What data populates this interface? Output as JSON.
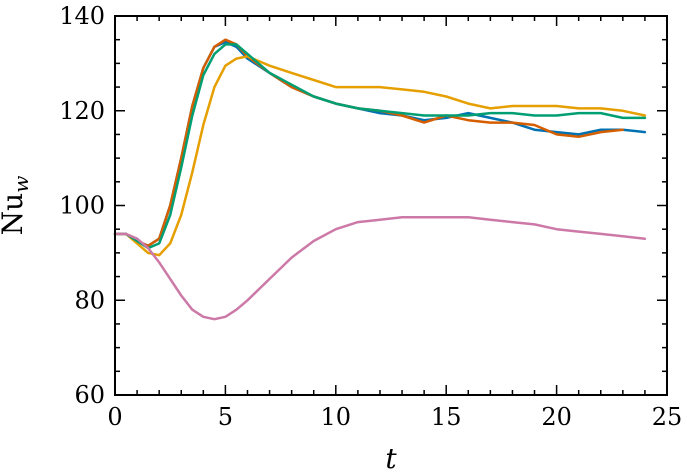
{
  "chart_data": {
    "type": "line",
    "xlabel": "t",
    "ylabel": {
      "main": "Nu",
      "sub": "w"
    },
    "xlim": [
      0,
      25
    ],
    "ylim": [
      60,
      140
    ],
    "xticks": [
      0,
      5,
      10,
      15,
      20,
      25
    ],
    "yticks": [
      60,
      80,
      100,
      120,
      140
    ],
    "xtick_labels": [
      "0",
      "5",
      "10",
      "15",
      "20",
      "25"
    ],
    "ytick_labels": [
      "60",
      "80",
      "100",
      "120",
      "140"
    ],
    "grid": false,
    "series": [
      {
        "color": "#0072b2",
        "x": [
          0,
          0.5,
          1,
          1.5,
          2,
          2.5,
          3,
          3.5,
          4,
          4.5,
          5,
          5.5,
          6,
          7,
          8,
          9,
          10,
          11,
          12,
          13,
          14,
          15,
          16,
          17,
          18,
          19,
          20,
          21,
          22,
          23,
          24
        ],
        "y": [
          94,
          94,
          92.5,
          91.5,
          93,
          100,
          110,
          121,
          129,
          133.5,
          134.5,
          133.5,
          131,
          128,
          125,
          123,
          121.5,
          120.5,
          119.5,
          119,
          118,
          118.5,
          119.5,
          118.5,
          117.5,
          116,
          115.5,
          115,
          116,
          116,
          115.5
        ]
      },
      {
        "color": "#d55e00",
        "x": [
          0,
          0.5,
          1,
          1.5,
          2,
          2.5,
          3,
          3.5,
          4,
          4.5,
          5,
          5.5,
          6,
          7,
          8,
          9,
          10,
          11,
          12,
          13,
          14,
          15,
          16,
          17,
          18,
          19,
          20,
          21,
          22,
          23,
          24
        ],
        "y": [
          94,
          94,
          92.5,
          91.5,
          93,
          100,
          110,
          121,
          129,
          133.5,
          135,
          134,
          131.5,
          128,
          125,
          123,
          121.5,
          120.5,
          120,
          119,
          117.5,
          119,
          118,
          117.5,
          117.5,
          117,
          115,
          114.5,
          115.5,
          116,
          null
        ]
      },
      {
        "color": "#e69f00",
        "x": [
          0,
          0.5,
          1,
          1.5,
          2,
          2.5,
          3,
          3.5,
          4,
          4.5,
          5,
          5.5,
          6,
          7,
          8,
          9,
          10,
          11,
          12,
          13,
          14,
          15,
          16,
          17,
          18,
          19,
          20,
          21,
          22,
          23,
          24
        ],
        "y": [
          94,
          94,
          92,
          90,
          89.5,
          92,
          98,
          107,
          117,
          125,
          129.5,
          131,
          131.5,
          129.5,
          128,
          126.5,
          125,
          125,
          125,
          124.5,
          124,
          123,
          121.5,
          120.5,
          121,
          121,
          121,
          120.5,
          120.5,
          120,
          119
        ]
      },
      {
        "color": "#009e73",
        "x": [
          0,
          0.5,
          1,
          1.5,
          2,
          2.5,
          3,
          3.5,
          4,
          4.5,
          5,
          5.5,
          6,
          7,
          8,
          9,
          10,
          11,
          12,
          13,
          14,
          15,
          16,
          17,
          18,
          19,
          20,
          21,
          22,
          23,
          24
        ],
        "y": [
          94,
          94,
          92.5,
          91,
          92,
          98,
          108,
          119,
          127.5,
          132,
          134,
          134,
          132,
          128,
          125.5,
          123,
          121.5,
          120.5,
          120,
          119.5,
          119,
          119,
          119,
          119.5,
          119.5,
          119,
          119,
          119.5,
          119.5,
          118.5,
          118.5
        ]
      },
      {
        "color": "#cc79a7",
        "x": [
          0,
          0.5,
          1,
          1.5,
          2,
          2.5,
          3,
          3.5,
          4,
          4.5,
          5,
          5.5,
          6,
          7,
          8,
          9,
          10,
          11,
          12,
          13,
          14,
          15,
          16,
          17,
          18,
          19,
          20,
          21,
          22,
          23,
          24
        ],
        "y": [
          94,
          94,
          93,
          91,
          88,
          84.5,
          81,
          78,
          76.5,
          76,
          76.5,
          78,
          80,
          84.5,
          89,
          92.5,
          95,
          96.5,
          97,
          97.5,
          97.5,
          97.5,
          97.5,
          97,
          96.5,
          96,
          95,
          94.5,
          94,
          93.5,
          93
        ]
      }
    ]
  }
}
